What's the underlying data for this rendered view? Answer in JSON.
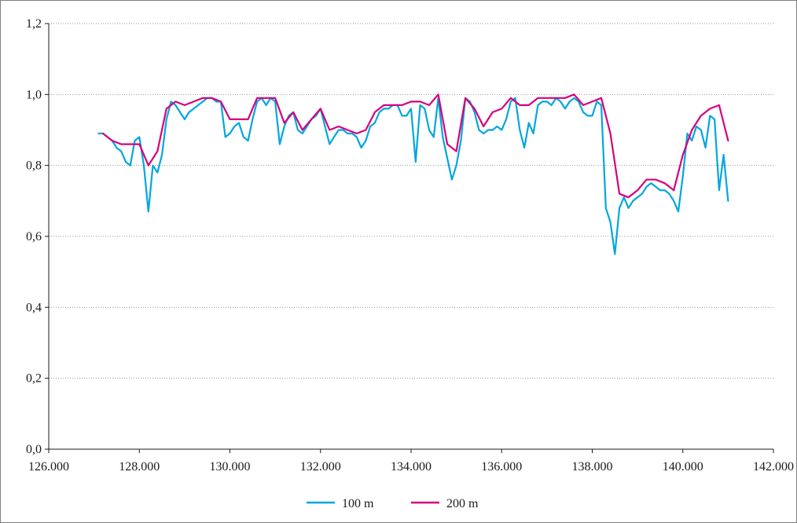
{
  "chart_data": {
    "type": "line",
    "title": "",
    "xlabel": "",
    "ylabel": "",
    "xlim": [
      126000,
      142000
    ],
    "ylim": [
      0,
      1.2
    ],
    "x_ticks": [
      126000,
      128000,
      130000,
      132000,
      134000,
      136000,
      138000,
      140000,
      142000
    ],
    "x_tick_labels": [
      "126.000",
      "128.000",
      "130.000",
      "132.000",
      "134.000",
      "136.000",
      "138.000",
      "140.000",
      "142.000"
    ],
    "y_ticks": [
      0,
      0.2,
      0.4,
      0.6,
      0.8,
      1.0,
      1.2
    ],
    "y_tick_labels": [
      "0,0",
      "0,2",
      "0,4",
      "0,6",
      "0,8",
      "1,0",
      "1,2"
    ],
    "grid": "horizontal dotted",
    "legend_position": "bottom-center",
    "series": [
      {
        "name": "100 m",
        "color": "#00a6e0",
        "x": [
          127100,
          127200,
          127300,
          127400,
          127500,
          127600,
          127700,
          127800,
          127900,
          128000,
          128100,
          128200,
          128300,
          128400,
          128500,
          128600,
          128700,
          128800,
          128900,
          129000,
          129100,
          129200,
          129300,
          129400,
          129500,
          129600,
          129700,
          129800,
          129900,
          130000,
          130100,
          130200,
          130300,
          130400,
          130500,
          130600,
          130700,
          130800,
          130900,
          131000,
          131100,
          131200,
          131300,
          131400,
          131500,
          131600,
          131700,
          131800,
          131900,
          132000,
          132100,
          132200,
          132300,
          132400,
          132500,
          132600,
          132700,
          132800,
          132900,
          133000,
          133100,
          133200,
          133300,
          133400,
          133500,
          133600,
          133700,
          133800,
          133900,
          134000,
          134100,
          134200,
          134300,
          134400,
          134500,
          134600,
          134700,
          134800,
          134900,
          135000,
          135100,
          135200,
          135300,
          135400,
          135500,
          135600,
          135700,
          135800,
          135900,
          136000,
          136100,
          136200,
          136300,
          136400,
          136500,
          136600,
          136700,
          136800,
          136900,
          137000,
          137100,
          137200,
          137300,
          137400,
          137500,
          137600,
          137700,
          137800,
          137900,
          138000,
          138100,
          138200,
          138300,
          138400,
          138500,
          138600,
          138700,
          138800,
          138900,
          139000,
          139100,
          139200,
          139300,
          139400,
          139500,
          139600,
          139700,
          139800,
          139900,
          140000,
          140100,
          140200,
          140300,
          140400,
          140500,
          140600,
          140700,
          140800,
          140900,
          141000
        ],
        "y": [
          0.89,
          0.89,
          0.88,
          0.87,
          0.85,
          0.84,
          0.81,
          0.8,
          0.87,
          0.88,
          0.8,
          0.67,
          0.8,
          0.78,
          0.83,
          0.93,
          0.98,
          0.97,
          0.95,
          0.93,
          0.95,
          0.96,
          0.97,
          0.98,
          0.99,
          0.99,
          0.98,
          0.98,
          0.88,
          0.89,
          0.91,
          0.92,
          0.88,
          0.87,
          0.93,
          0.98,
          0.99,
          0.97,
          0.99,
          0.98,
          0.86,
          0.91,
          0.94,
          0.95,
          0.9,
          0.89,
          0.91,
          0.93,
          0.94,
          0.96,
          0.91,
          0.86,
          0.88,
          0.9,
          0.9,
          0.89,
          0.89,
          0.88,
          0.85,
          0.87,
          0.91,
          0.92,
          0.95,
          0.96,
          0.96,
          0.97,
          0.97,
          0.94,
          0.94,
          0.96,
          0.81,
          0.97,
          0.96,
          0.9,
          0.88,
          0.99,
          0.88,
          0.82,
          0.76,
          0.8,
          0.87,
          0.99,
          0.98,
          0.95,
          0.9,
          0.89,
          0.9,
          0.9,
          0.91,
          0.9,
          0.93,
          0.98,
          0.99,
          0.9,
          0.85,
          0.92,
          0.89,
          0.97,
          0.98,
          0.98,
          0.97,
          0.99,
          0.98,
          0.96,
          0.98,
          0.99,
          0.98,
          0.95,
          0.94,
          0.94,
          0.98,
          0.97,
          0.68,
          0.64,
          0.55,
          0.68,
          0.71,
          0.68,
          0.7,
          0.71,
          0.72,
          0.74,
          0.75,
          0.74,
          0.73,
          0.73,
          0.72,
          0.7,
          0.67,
          0.77,
          0.89,
          0.87,
          0.91,
          0.9,
          0.85,
          0.94,
          0.93,
          0.73,
          0.83,
          0.7
        ]
      },
      {
        "name": "200 m",
        "color": "#d6007e",
        "x": [
          127200,
          127400,
          127600,
          127800,
          128000,
          128200,
          128400,
          128600,
          128800,
          129000,
          129200,
          129400,
          129600,
          129800,
          130000,
          130200,
          130400,
          130600,
          130800,
          131000,
          131200,
          131400,
          131600,
          131800,
          132000,
          132200,
          132400,
          132600,
          132800,
          133000,
          133200,
          133400,
          133600,
          133800,
          134000,
          134200,
          134400,
          134600,
          134800,
          135000,
          135200,
          135400,
          135600,
          135800,
          136000,
          136200,
          136400,
          136600,
          136800,
          137000,
          137200,
          137400,
          137600,
          137800,
          138000,
          138200,
          138400,
          138600,
          138800,
          139000,
          139200,
          139400,
          139600,
          139800,
          140000,
          140200,
          140400,
          140600,
          140800,
          141000
        ],
        "y": [
          0.89,
          0.87,
          0.86,
          0.86,
          0.86,
          0.8,
          0.84,
          0.96,
          0.98,
          0.97,
          0.98,
          0.99,
          0.99,
          0.98,
          0.93,
          0.93,
          0.93,
          0.99,
          0.99,
          0.99,
          0.92,
          0.95,
          0.9,
          0.93,
          0.96,
          0.9,
          0.91,
          0.9,
          0.89,
          0.9,
          0.95,
          0.97,
          0.97,
          0.97,
          0.98,
          0.98,
          0.97,
          1.0,
          0.86,
          0.84,
          0.99,
          0.96,
          0.91,
          0.95,
          0.96,
          0.99,
          0.97,
          0.97,
          0.99,
          0.99,
          0.99,
          0.99,
          1.0,
          0.97,
          0.98,
          0.99,
          0.89,
          0.72,
          0.71,
          0.73,
          0.76,
          0.76,
          0.75,
          0.73,
          0.83,
          0.9,
          0.94,
          0.96,
          0.97,
          0.87
        ]
      }
    ]
  }
}
